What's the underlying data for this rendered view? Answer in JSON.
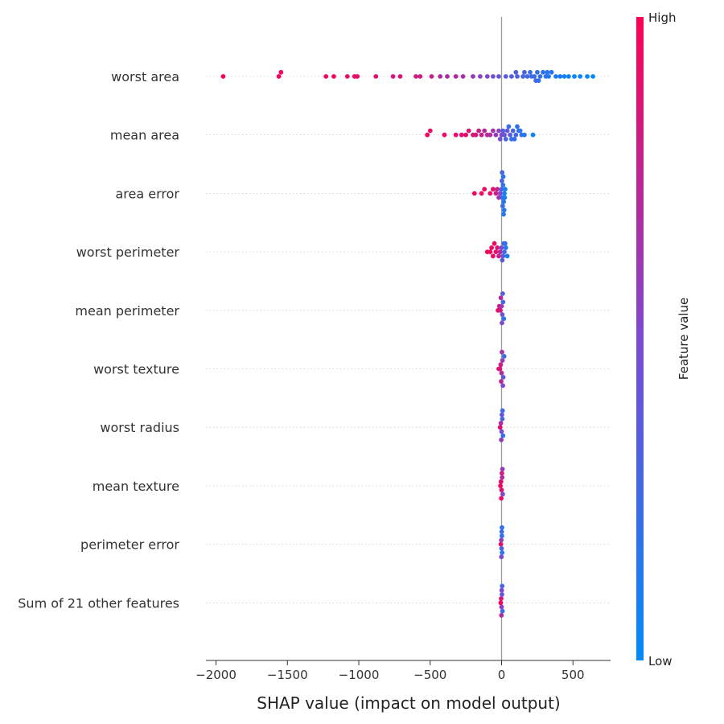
{
  "chart_data": {
    "type": "scatter",
    "subtype": "shap-beeswarm",
    "title": "",
    "xlabel": "SHAP value (impact on model output)",
    "ylabel": "",
    "xlim": [
      -2070,
      760
    ],
    "x_ticks": [
      -2000,
      -1500,
      -1000,
      -500,
      0,
      500
    ],
    "x_tick_labels": [
      "−2000",
      "−1500",
      "−1000",
      "−500",
      "0",
      "500"
    ],
    "colorbar": {
      "label": "Feature value",
      "high_label": "High",
      "low_label": "Low",
      "high_color": "#ff0052",
      "low_color": "#008bfb"
    },
    "features": [
      {
        "name": "worst area",
        "points": [
          {
            "v": -1950,
            "c": 0.97
          },
          {
            "v": -1560,
            "c": 0.97
          },
          {
            "v": -1545,
            "c": 0.96
          },
          {
            "v": -1230,
            "c": 0.93
          },
          {
            "v": -1175,
            "c": 0.95
          },
          {
            "v": -1080,
            "c": 0.92
          },
          {
            "v": -1030,
            "c": 0.9
          },
          {
            "v": -1010,
            "c": 0.92
          },
          {
            "v": -880,
            "c": 0.88
          },
          {
            "v": -760,
            "c": 0.85
          },
          {
            "v": -710,
            "c": 0.86
          },
          {
            "v": -600,
            "c": 0.8
          },
          {
            "v": -570,
            "c": 0.82
          },
          {
            "v": -490,
            "c": 0.75
          },
          {
            "v": -430,
            "c": 0.7
          },
          {
            "v": -380,
            "c": 0.68
          },
          {
            "v": -320,
            "c": 0.72
          },
          {
            "v": -270,
            "c": 0.66
          },
          {
            "v": -200,
            "c": 0.6
          },
          {
            "v": -150,
            "c": 0.55
          },
          {
            "v": -100,
            "c": 0.5
          },
          {
            "v": -60,
            "c": 0.45
          },
          {
            "v": -20,
            "c": 0.42
          },
          {
            "v": 30,
            "c": 0.38
          },
          {
            "v": 70,
            "c": 0.35
          },
          {
            "v": 110,
            "c": 0.32
          },
          {
            "v": 150,
            "c": 0.3
          },
          {
            "v": 180,
            "c": 0.28
          },
          {
            "v": 210,
            "c": 0.25
          },
          {
            "v": 230,
            "c": 0.26
          },
          {
            "v": 250,
            "c": 0.22
          },
          {
            "v": 270,
            "c": 0.2
          },
          {
            "v": 290,
            "c": 0.18
          },
          {
            "v": 310,
            "c": 0.2
          },
          {
            "v": 330,
            "c": 0.15
          },
          {
            "v": 350,
            "c": 0.14
          },
          {
            "v": 380,
            "c": 0.12
          },
          {
            "v": 410,
            "c": 0.1
          },
          {
            "v": 440,
            "c": 0.08
          },
          {
            "v": 470,
            "c": 0.06
          },
          {
            "v": 510,
            "c": 0.05
          },
          {
            "v": 550,
            "c": 0.04
          },
          {
            "v": 600,
            "c": 0.03
          },
          {
            "v": 640,
            "c": 0.02
          },
          {
            "v": 200,
            "c": 0.24
          },
          {
            "v": 260,
            "c": 0.2
          },
          {
            "v": 320,
            "c": 0.18
          },
          {
            "v": 160,
            "c": 0.3
          },
          {
            "v": 100,
            "c": 0.33
          },
          {
            "v": 240,
            "c": 0.27
          }
        ]
      },
      {
        "name": "mean area",
        "points": [
          {
            "v": -520,
            "c": 0.95
          },
          {
            "v": -500,
            "c": 0.93
          },
          {
            "v": -400,
            "c": 0.92
          },
          {
            "v": -320,
            "c": 0.9
          },
          {
            "v": -280,
            "c": 0.88
          },
          {
            "v": -250,
            "c": 0.9
          },
          {
            "v": -230,
            "c": 0.86
          },
          {
            "v": -200,
            "c": 0.85
          },
          {
            "v": -180,
            "c": 0.83
          },
          {
            "v": -160,
            "c": 0.8
          },
          {
            "v": -140,
            "c": 0.78
          },
          {
            "v": -120,
            "c": 0.75
          },
          {
            "v": -100,
            "c": 0.72
          },
          {
            "v": -80,
            "c": 0.7
          },
          {
            "v": -60,
            "c": 0.65
          },
          {
            "v": -40,
            "c": 0.6
          },
          {
            "v": -20,
            "c": 0.55
          },
          {
            "v": 0,
            "c": 0.5
          },
          {
            "v": 20,
            "c": 0.45
          },
          {
            "v": 40,
            "c": 0.4
          },
          {
            "v": 60,
            "c": 0.35
          },
          {
            "v": 80,
            "c": 0.3
          },
          {
            "v": 100,
            "c": 0.28
          },
          {
            "v": 120,
            "c": 0.25
          },
          {
            "v": 140,
            "c": 0.2
          },
          {
            "v": 160,
            "c": 0.15
          },
          {
            "v": 220,
            "c": 0.08
          },
          {
            "v": 30,
            "c": 0.3
          },
          {
            "v": 50,
            "c": 0.25
          },
          {
            "v": 70,
            "c": 0.2
          },
          {
            "v": 90,
            "c": 0.22
          },
          {
            "v": 10,
            "c": 0.35
          },
          {
            "v": -10,
            "c": 0.45
          },
          {
            "v": 110,
            "c": 0.18
          },
          {
            "v": 130,
            "c": 0.15
          }
        ]
      },
      {
        "name": "area error",
        "points": [
          {
            "v": -190,
            "c": 0.95
          },
          {
            "v": -140,
            "c": 0.92
          },
          {
            "v": -120,
            "c": 0.93
          },
          {
            "v": -80,
            "c": 0.9
          },
          {
            "v": -60,
            "c": 0.88
          },
          {
            "v": -40,
            "c": 0.82
          },
          {
            "v": -30,
            "c": 0.75
          },
          {
            "v": -20,
            "c": 0.65
          },
          {
            "v": -10,
            "c": 0.5
          },
          {
            "v": 0,
            "c": 0.35
          },
          {
            "v": 5,
            "c": 0.25
          },
          {
            "v": 10,
            "c": 0.2
          },
          {
            "v": 15,
            "c": 0.15
          },
          {
            "v": 20,
            "c": 0.1
          },
          {
            "v": 25,
            "c": 0.08
          },
          {
            "v": 2,
            "c": 0.3
          },
          {
            "v": 8,
            "c": 0.22
          },
          {
            "v": 12,
            "c": 0.18
          },
          {
            "v": 18,
            "c": 0.12
          },
          {
            "v": 22,
            "c": 0.1
          },
          {
            "v": 4,
            "c": 0.28
          },
          {
            "v": 14,
            "c": 0.16
          }
        ]
      },
      {
        "name": "worst perimeter",
        "points": [
          {
            "v": -100,
            "c": 0.97
          },
          {
            "v": -80,
            "c": 0.95
          },
          {
            "v": -70,
            "c": 0.96
          },
          {
            "v": -60,
            "c": 0.93
          },
          {
            "v": -50,
            "c": 0.92
          },
          {
            "v": -40,
            "c": 0.9
          },
          {
            "v": -30,
            "c": 0.85
          },
          {
            "v": -20,
            "c": 0.8
          },
          {
            "v": -10,
            "c": 0.7
          },
          {
            "v": 0,
            "c": 0.5
          },
          {
            "v": 10,
            "c": 0.35
          },
          {
            "v": 20,
            "c": 0.25
          },
          {
            "v": 30,
            "c": 0.15
          },
          {
            "v": 40,
            "c": 0.1
          },
          {
            "v": 15,
            "c": 0.3
          },
          {
            "v": 25,
            "c": 0.2
          },
          {
            "v": 5,
            "c": 0.4
          }
        ]
      },
      {
        "name": "mean perimeter",
        "points": [
          {
            "v": -25,
            "c": 0.95
          },
          {
            "v": -15,
            "c": 0.9
          },
          {
            "v": -8,
            "c": 0.8
          },
          {
            "v": 0,
            "c": 0.6
          },
          {
            "v": 5,
            "c": 0.45
          },
          {
            "v": 10,
            "c": 0.3
          },
          {
            "v": 15,
            "c": 0.2
          },
          {
            "v": -5,
            "c": 0.7
          },
          {
            "v": 3,
            "c": 0.5
          },
          {
            "v": 8,
            "c": 0.35
          }
        ]
      },
      {
        "name": "worst texture",
        "points": [
          {
            "v": -20,
            "c": 0.9
          },
          {
            "v": -12,
            "c": 0.85
          },
          {
            "v": -6,
            "c": 0.8
          },
          {
            "v": 0,
            "c": 0.7
          },
          {
            "v": 6,
            "c": 0.6
          },
          {
            "v": 12,
            "c": 0.4
          },
          {
            "v": 18,
            "c": 0.25
          },
          {
            "v": -3,
            "c": 0.75
          },
          {
            "v": 3,
            "c": 0.65
          },
          {
            "v": 9,
            "c": 0.5
          }
        ]
      },
      {
        "name": "worst radius",
        "points": [
          {
            "v": -10,
            "c": 0.9
          },
          {
            "v": -5,
            "c": 0.7
          },
          {
            "v": 0,
            "c": 0.5
          },
          {
            "v": 5,
            "c": 0.3
          },
          {
            "v": 10,
            "c": 0.2
          },
          {
            "v": 2,
            "c": 0.4
          },
          {
            "v": -2,
            "c": 0.6
          },
          {
            "v": 7,
            "c": 0.25
          }
        ]
      },
      {
        "name": "mean texture",
        "points": [
          {
            "v": -8,
            "c": 0.95
          },
          {
            "v": -4,
            "c": 0.9
          },
          {
            "v": 0,
            "c": 0.85
          },
          {
            "v": 4,
            "c": 0.7
          },
          {
            "v": 8,
            "c": 0.5
          },
          {
            "v": 2,
            "c": 0.8
          },
          {
            "v": -2,
            "c": 0.92
          },
          {
            "v": 6,
            "c": 0.6
          }
        ]
      },
      {
        "name": "perimeter error",
        "points": [
          {
            "v": -5,
            "c": 0.9
          },
          {
            "v": -2,
            "c": 0.6
          },
          {
            "v": 0,
            "c": 0.3
          },
          {
            "v": 2,
            "c": 0.2
          },
          {
            "v": 4,
            "c": 0.15
          },
          {
            "v": 1,
            "c": 0.25
          },
          {
            "v": -1,
            "c": 0.5
          },
          {
            "v": 3,
            "c": 0.18
          }
        ]
      },
      {
        "name": "Sum of 21 other features",
        "points": [
          {
            "v": -6,
            "c": 0.95
          },
          {
            "v": -3,
            "c": 0.85
          },
          {
            "v": 0,
            "c": 0.6
          },
          {
            "v": 3,
            "c": 0.4
          },
          {
            "v": 6,
            "c": 0.25
          },
          {
            "v": 1,
            "c": 0.5
          },
          {
            "v": -1,
            "c": 0.7
          },
          {
            "v": 4,
            "c": 0.3
          }
        ]
      }
    ]
  }
}
